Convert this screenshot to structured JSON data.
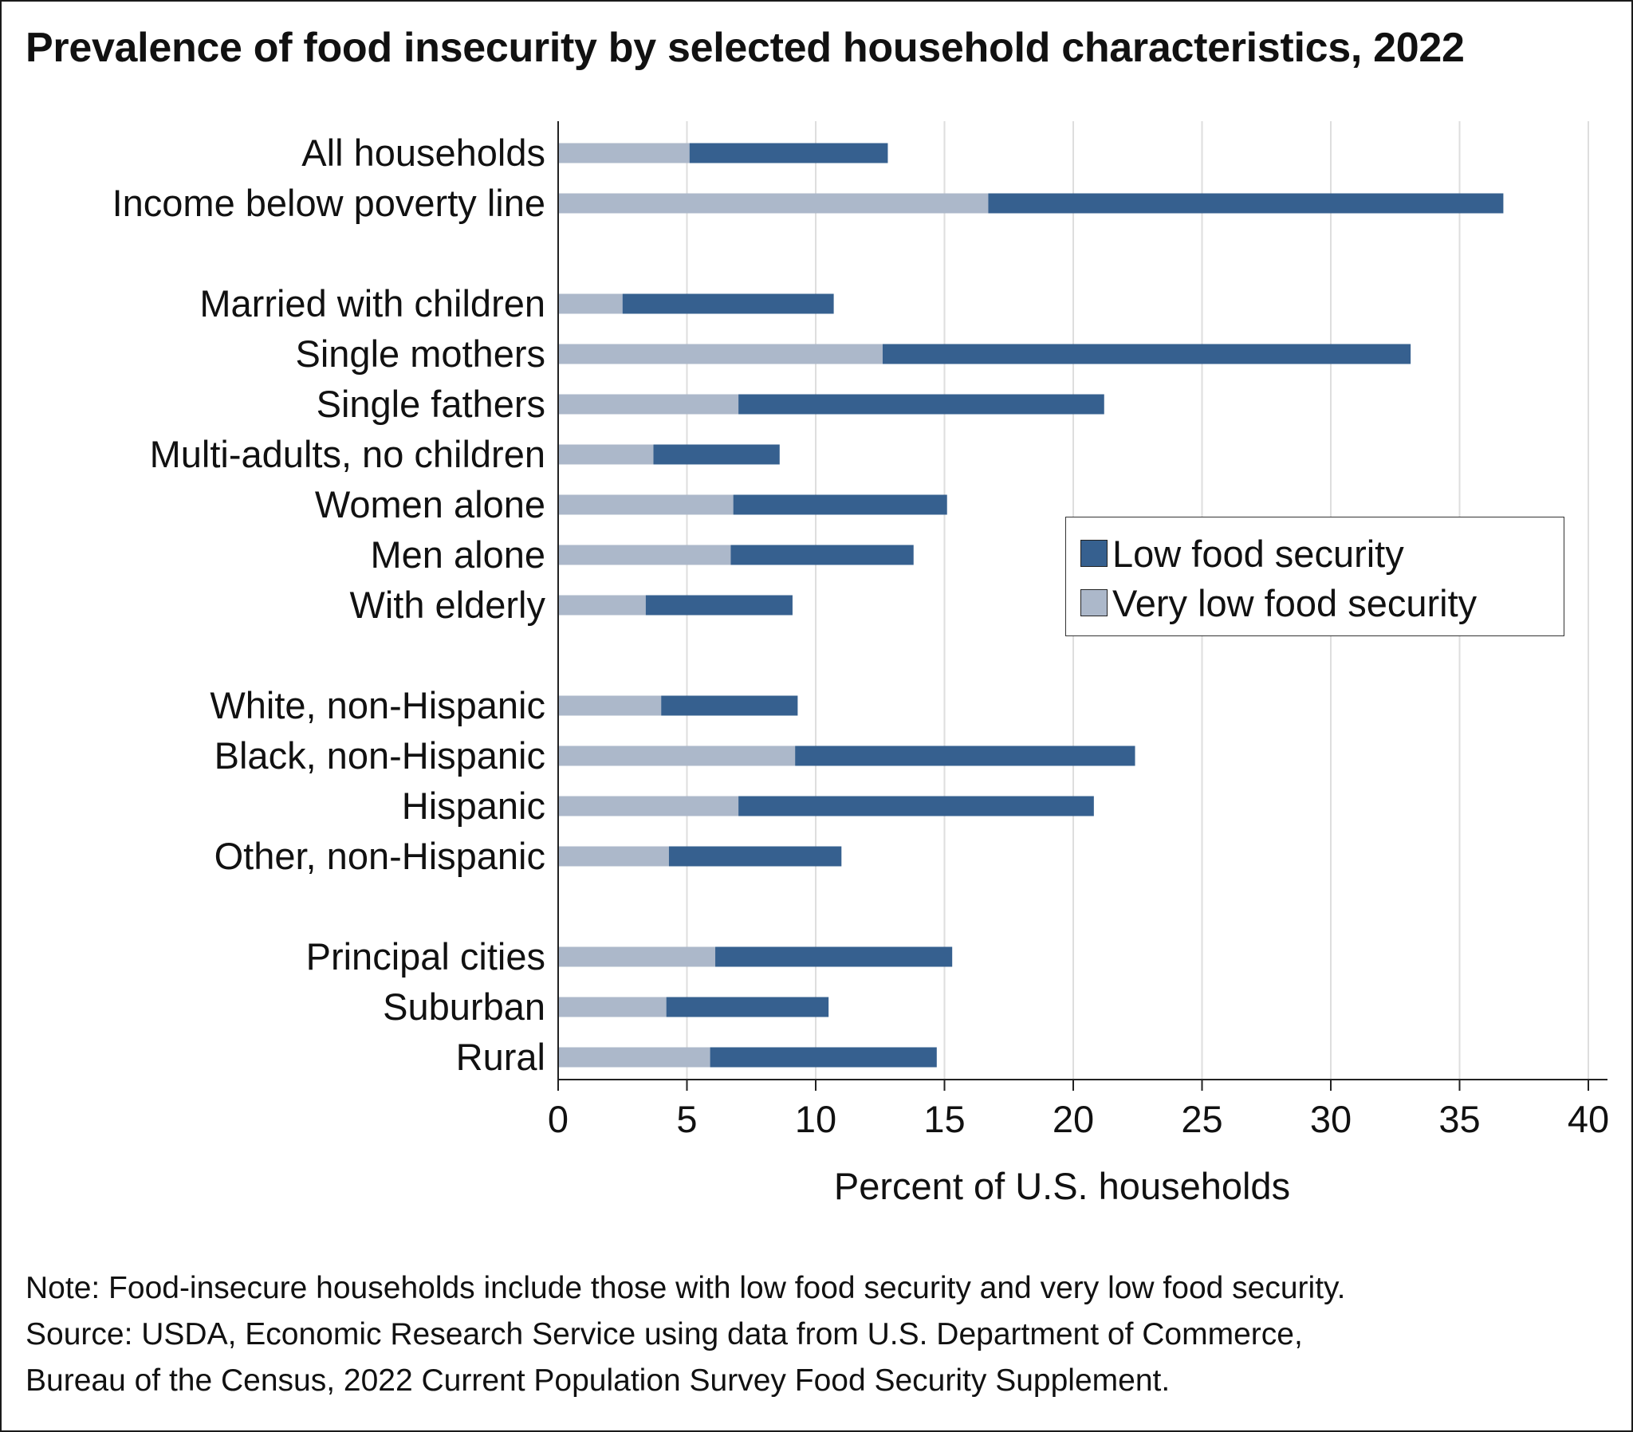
{
  "title": "Prevalence of food insecurity by selected household characteristics, 2022",
  "legend": {
    "low_label": "Low food security",
    "very_low_label": "Very low food security"
  },
  "colors": {
    "low_food_security": "#36608f",
    "very_low_food_security": "#acb8ca",
    "gridline": "#dedede",
    "axis": "#222222"
  },
  "notes": {
    "note": "Note: Food-insecure households include those with low food security and very low food security.",
    "source_line1": "Source: USDA, Economic Research Service using data from U.S. Department of Commerce,",
    "source_line2": "Bureau of the Census, 2022 Current Population Survey Food Security Supplement."
  },
  "chart_data": {
    "type": "bar",
    "orientation": "horizontal",
    "stacked": true,
    "title": "Prevalence of food insecurity by selected household characteristics, 2022",
    "xlabel": "Percent of U.S. households",
    "ylabel": "",
    "xlim": [
      0,
      40
    ],
    "xticks": [
      "0",
      "5",
      "10",
      "15",
      "20",
      "25",
      "30",
      "35",
      "40"
    ],
    "grid": "vertical",
    "legend_position": "center-right",
    "groups": [
      [
        "All households",
        "Income below poverty line"
      ],
      [
        "Married with children",
        "Single mothers",
        "Single fathers",
        "Multi-adults, no children",
        "Women alone",
        "Men alone",
        "With elderly"
      ],
      [
        "White, non-Hispanic",
        "Black, non-Hispanic",
        "Hispanic",
        "Other, non-Hispanic"
      ],
      [
        "Principal cities",
        "Suburban",
        "Rural"
      ]
    ],
    "categories": [
      "All households",
      "Income below poverty line",
      "Married with children",
      "Single mothers",
      "Single fathers",
      "Multi-adults, no children",
      "Women alone",
      "Men alone",
      "With elderly",
      "White, non-Hispanic",
      "Black, non-Hispanic",
      "Hispanic",
      "Other, non-Hispanic",
      "Principal cities",
      "Suburban",
      "Rural"
    ],
    "series": [
      {
        "name": "Very low food security",
        "values": [
          5.1,
          16.7,
          2.5,
          12.6,
          7.0,
          3.7,
          6.8,
          6.7,
          3.4,
          4.0,
          9.2,
          7.0,
          4.3,
          6.1,
          4.2,
          5.9
        ]
      },
      {
        "name": "Low food security",
        "values": [
          7.7,
          20.0,
          8.2,
          20.5,
          14.2,
          4.9,
          8.3,
          7.1,
          5.7,
          5.3,
          13.2,
          13.8,
          6.7,
          9.2,
          6.3,
          8.8
        ]
      }
    ]
  }
}
